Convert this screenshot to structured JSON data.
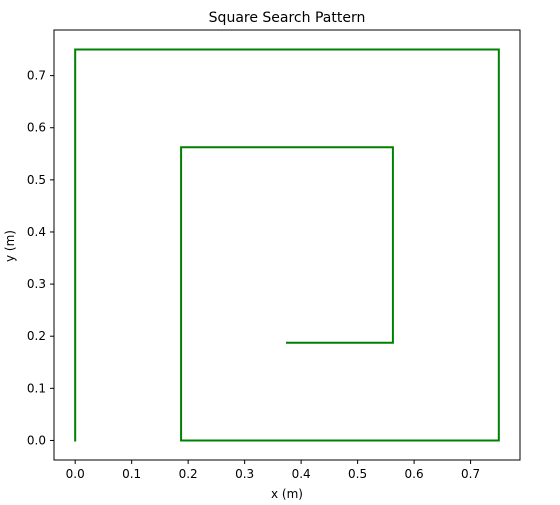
{
  "chart_data": {
    "type": "line",
    "title": "Square Search Pattern",
    "xlabel": "x (m)",
    "ylabel": "y (m)",
    "xlim": [
      -0.0375,
      0.7875
    ],
    "ylim": [
      -0.0375,
      0.7875
    ],
    "xticks": [
      0.0,
      0.1,
      0.2,
      0.3,
      0.4,
      0.5,
      0.6,
      0.7
    ],
    "yticks": [
      0.0,
      0.1,
      0.2,
      0.3,
      0.4,
      0.5,
      0.6,
      0.7
    ],
    "grid": false,
    "series": [
      {
        "color": "#008000",
        "points": [
          {
            "x": 0.0,
            "y": 0.0
          },
          {
            "x": 0.0,
            "y": 0.75
          },
          {
            "x": 0.75,
            "y": 0.75
          },
          {
            "x": 0.75,
            "y": 0.0
          },
          {
            "x": 0.1875,
            "y": 0.0
          },
          {
            "x": 0.1875,
            "y": 0.5625
          },
          {
            "x": 0.5625,
            "y": 0.5625
          },
          {
            "x": 0.5625,
            "y": 0.1875
          },
          {
            "x": 0.375,
            "y": 0.1875
          }
        ]
      }
    ]
  }
}
